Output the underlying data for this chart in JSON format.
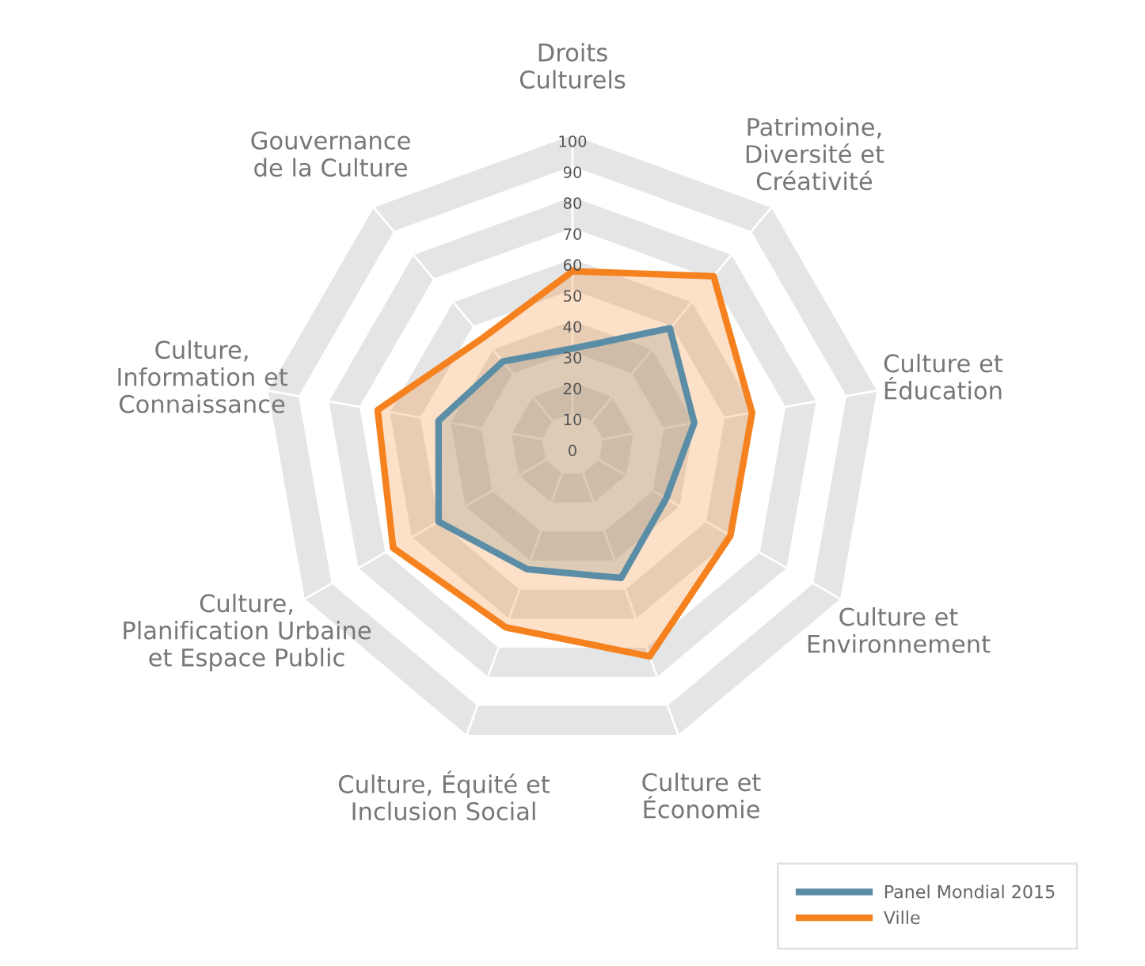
{
  "chart_data": {
    "type": "radar",
    "categories": [
      "Droits\nCulturels",
      "Patrimoine,\nDiversité et\nCréativité",
      "Culture et\nÉducation",
      "Culture et\nEnvironnement",
      "Culture et\nÉconomie",
      "Culture, Équité et\nInclusion Social",
      "Culture,\nPlanification Urbaine\net Espace Public",
      "Culture,\nInformation et\nConnaissance",
      "Gouvernance\nde la Culture"
    ],
    "series": [
      {
        "name": "Panel Mondial 2015",
        "color": "#5b8ea6",
        "values": [
          31,
          49,
          40,
          35,
          46,
          43,
          50,
          44,
          35
        ]
      },
      {
        "name": "Ville",
        "color": "#f5821f",
        "values": [
          56,
          71,
          59,
          59,
          73,
          63,
          67,
          64,
          45
        ]
      }
    ],
    "ylim": [
      0,
      100
    ],
    "yticks": [
      0,
      10,
      20,
      30,
      40,
      50,
      60,
      70,
      80,
      90,
      100
    ],
    "grid": true,
    "legend": "bottom right"
  }
}
